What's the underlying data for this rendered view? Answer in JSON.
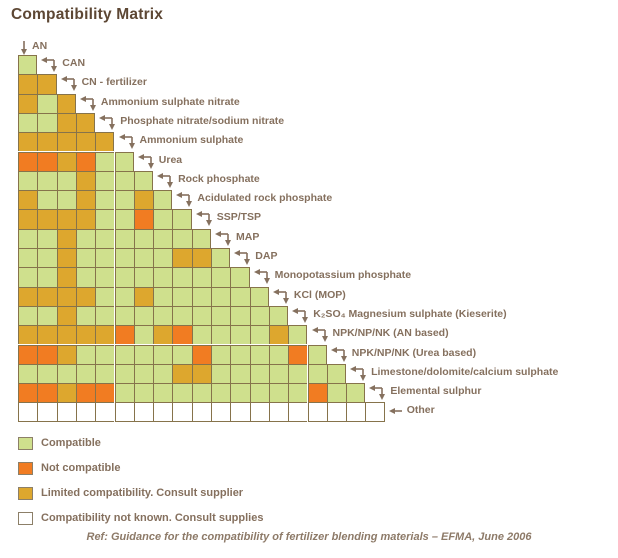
{
  "title": "Compatibility Matrix",
  "footer": "Ref: Guidance for the compatibility of fertilizer blending materials – EFMA, June 2006",
  "colors": {
    "C": "#cfe08d",
    "N": "#f17c22",
    "L": "#dda72e",
    "U": "#ffffff",
    "border": "#86734b"
  },
  "legend": [
    {
      "code": "C",
      "color": "#cfe08d",
      "label": "Compatible"
    },
    {
      "code": "N",
      "color": "#f17c22",
      "label": "Not compatible"
    },
    {
      "code": "L",
      "color": "#dda72e",
      "label": "Limited compatibility. Consult supplier"
    },
    {
      "code": "U",
      "color": "#ffffff",
      "label": "Compatibility not known. Consult supplies"
    }
  ],
  "chart_data": {
    "type": "heatmap",
    "title": "Compatibility Matrix",
    "corner_label": "AN",
    "cell_codes": {
      "C": "Compatible",
      "N": "Not compatible",
      "L": "Limited compatibility. Consult supplier",
      "U": "Compatibility not known. Consult supplies"
    },
    "columns": [
      "AN",
      "CAN",
      "CN - fertilizer",
      "Ammonium sulphate nitrate",
      "Phosphate nitrate/sodium nitrate",
      "Ammonium sulphate",
      "Urea",
      "Rock phosphate",
      "Acidulated rock phosphate",
      "SSP/TSP",
      "MAP",
      "DAP",
      "Monopotassium phosphate",
      "KCl (MOP)",
      "K₂SO₄ Magnesium sulphate (Kieserite)",
      "NPK/NP/NK (AN based)",
      "NPK/NP/NK (Urea based)",
      "Limestone/dolomite/calcium sulphate",
      "Elemental sulphur"
    ],
    "rows": [
      {
        "label": "CAN",
        "cells": [
          "C"
        ]
      },
      {
        "label": "CN - fertilizer",
        "cells": [
          "L",
          "L"
        ]
      },
      {
        "label": "Ammonium sulphate nitrate",
        "cells": [
          "L",
          "C",
          "L"
        ]
      },
      {
        "label": "Phosphate nitrate/sodium nitrate",
        "cells": [
          "C",
          "C",
          "L",
          "L"
        ]
      },
      {
        "label": "Ammonium sulphate",
        "cells": [
          "L",
          "L",
          "L",
          "L",
          "L"
        ]
      },
      {
        "label": "Urea",
        "cells": [
          "N",
          "N",
          "L",
          "N",
          "C",
          "C"
        ]
      },
      {
        "label": "Rock phosphate",
        "cells": [
          "C",
          "C",
          "C",
          "L",
          "C",
          "C",
          "C"
        ]
      },
      {
        "label": "Acidulated rock phosphate",
        "cells": [
          "L",
          "C",
          "C",
          "L",
          "C",
          "C",
          "L",
          "C"
        ]
      },
      {
        "label": "SSP/TSP",
        "cells": [
          "L",
          "L",
          "L",
          "L",
          "C",
          "C",
          "N",
          "C",
          "C"
        ]
      },
      {
        "label": "MAP",
        "cells": [
          "C",
          "C",
          "L",
          "C",
          "C",
          "C",
          "C",
          "C",
          "C",
          "C"
        ]
      },
      {
        "label": "DAP",
        "cells": [
          "C",
          "C",
          "L",
          "C",
          "C",
          "C",
          "C",
          "C",
          "L",
          "L",
          "C"
        ]
      },
      {
        "label": "Monopotassium phosphate",
        "cells": [
          "C",
          "C",
          "L",
          "C",
          "C",
          "C",
          "C",
          "C",
          "C",
          "C",
          "C",
          "C"
        ]
      },
      {
        "label": "KCl (MOP)",
        "cells": [
          "L",
          "L",
          "L",
          "L",
          "C",
          "C",
          "L",
          "C",
          "C",
          "C",
          "C",
          "C",
          "C"
        ]
      },
      {
        "label": "K₂SO₄ Magnesium sulphate (Kieserite)",
        "cells": [
          "C",
          "C",
          "L",
          "C",
          "C",
          "C",
          "C",
          "C",
          "C",
          "C",
          "C",
          "C",
          "C",
          "C"
        ]
      },
      {
        "label": "NPK/NP/NK (AN based)",
        "cells": [
          "L",
          "L",
          "L",
          "L",
          "L",
          "N",
          "C",
          "L",
          "N",
          "C",
          "C",
          "C",
          "C",
          "L",
          "C"
        ]
      },
      {
        "label": "NPK/NP/NK (Urea based)",
        "cells": [
          "N",
          "N",
          "L",
          "C",
          "C",
          "C",
          "C",
          "C",
          "C",
          "N",
          "C",
          "C",
          "C",
          "C",
          "N",
          "C"
        ]
      },
      {
        "label": "Limestone/dolomite/calcium sulphate",
        "cells": [
          "C",
          "C",
          "C",
          "C",
          "C",
          "C",
          "C",
          "C",
          "L",
          "L",
          "C",
          "C",
          "C",
          "C",
          "C",
          "C",
          "C"
        ]
      },
      {
        "label": "Elemental sulphur",
        "cells": [
          "N",
          "N",
          "L",
          "N",
          "N",
          "C",
          "C",
          "C",
          "C",
          "C",
          "C",
          "C",
          "C",
          "C",
          "C",
          "N",
          "C",
          "C"
        ]
      },
      {
        "label": "Other",
        "cells": [
          "U",
          "U",
          "U",
          "U",
          "U",
          "U",
          "U",
          "U",
          "U",
          "U",
          "U",
          "U",
          "U",
          "U",
          "U",
          "U",
          "U",
          "U",
          "U"
        ]
      }
    ]
  }
}
